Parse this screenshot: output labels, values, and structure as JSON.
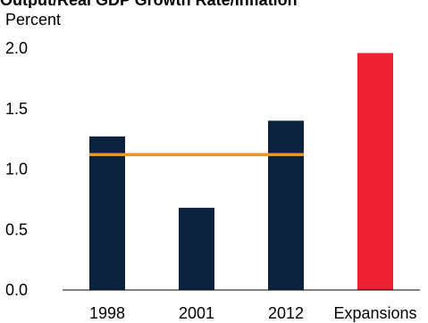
{
  "header": {
    "clipped_title": "Output/Real GDP Growth Rate/Inflation",
    "unit_label": "Percent"
  },
  "colors": {
    "bar_navy": "#0c2340",
    "bar_red": "#ee2233",
    "average_line": "#f0952a",
    "axis": "#000000"
  },
  "chart_data": {
    "type": "bar",
    "title": "",
    "ylabel": "Percent",
    "xlabel": "",
    "categories": [
      "1998",
      "2001",
      "2012",
      "Expansions"
    ],
    "values": [
      1.27,
      0.68,
      1.4,
      1.96
    ],
    "bar_colors": [
      "#0c2340",
      "#0c2340",
      "#0c2340",
      "#ee2233"
    ],
    "ylim": [
      0,
      2.0
    ],
    "yticks": [
      0.0,
      0.5,
      1.0,
      1.5,
      2.0
    ],
    "ytick_labels": [
      "0.0",
      "0.5",
      "1.0",
      "1.5",
      "2.0"
    ],
    "reference_line": {
      "value": 1.12,
      "from_category": "1998",
      "to_category": "2012"
    },
    "grid": false,
    "legend": "none"
  }
}
